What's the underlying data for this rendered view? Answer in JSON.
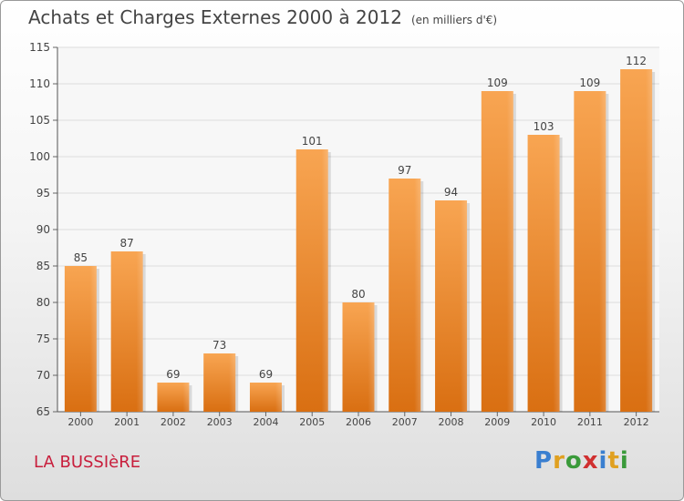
{
  "chart_data": {
    "type": "bar",
    "title": "Achats et Charges Externes 2000 à 2012",
    "subtitle": "(en milliers d'€)",
    "categories": [
      "2000",
      "2001",
      "2002",
      "2003",
      "2004",
      "2005",
      "2006",
      "2007",
      "2008",
      "2009",
      "2010",
      "2011",
      "2012"
    ],
    "values": [
      85,
      87,
      69,
      73,
      69,
      101,
      80,
      97,
      94,
      109,
      103,
      109,
      112
    ],
    "ylim": [
      65,
      115
    ],
    "yticks": [
      65,
      70,
      75,
      80,
      85,
      90,
      95,
      100,
      105,
      110,
      115
    ],
    "grid": true,
    "bar_color": "#f0913a"
  },
  "footer": {
    "place": "LA BUSSIèRE",
    "logo_letters": [
      {
        "ch": "P",
        "color": "#3a7fd0"
      },
      {
        "ch": "r",
        "color": "#e0a020"
      },
      {
        "ch": "o",
        "color": "#3a9a3a"
      },
      {
        "ch": "x",
        "color": "#d03030"
      },
      {
        "ch": "i",
        "color": "#3a7fd0"
      },
      {
        "ch": "t",
        "color": "#e0a020"
      },
      {
        "ch": "i",
        "color": "#3a9a3a"
      }
    ]
  }
}
